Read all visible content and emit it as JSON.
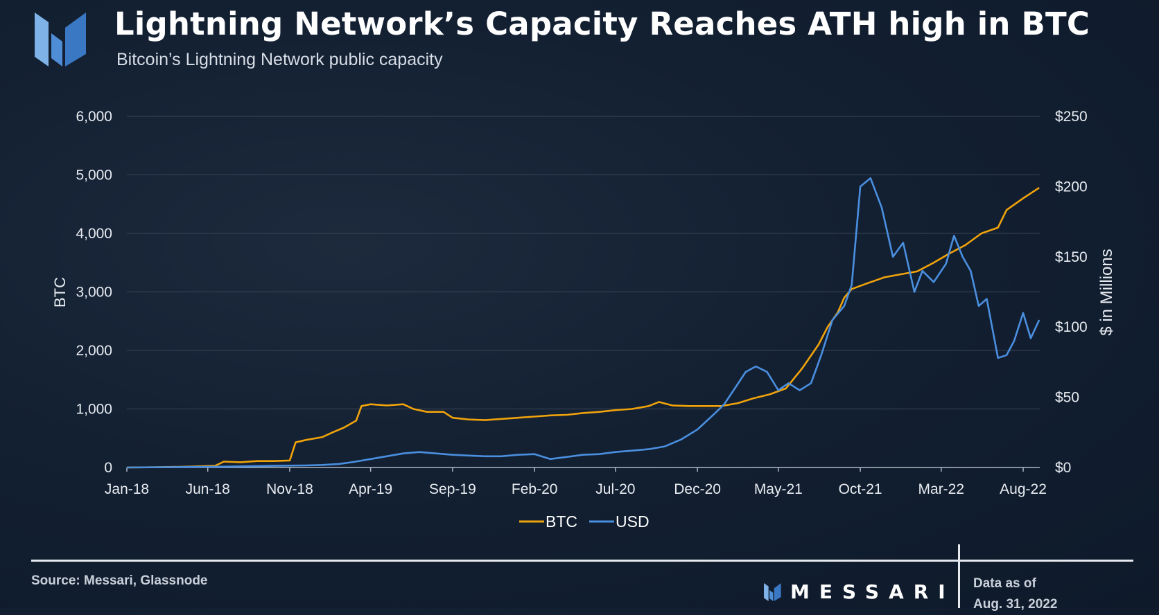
{
  "header": {
    "title": "Lightning Network’s Capacity Reaches ATH high in BTC",
    "subtitle": "Bitcoin’s Lightning Network public capacity"
  },
  "colors": {
    "btc": "#f0a30a",
    "usd": "#4a8fe0",
    "grid": "#3a4657",
    "logo_light": "#7fb2e6",
    "logo_dark": "#3b78c4"
  },
  "footer": {
    "source": "Source: Messari, Glassnode",
    "brand": "MESSARI",
    "data_as_of_label": "Data as of",
    "data_as_of_date": "Aug. 31, 2022"
  },
  "chart_data": {
    "type": "line",
    "title": "Lightning Network’s Capacity Reaches ATH high in BTC",
    "subtitle": "Bitcoin’s Lightning Network public capacity",
    "x_ticks": [
      "Jan-18",
      "Jun-18",
      "Nov-18",
      "Apr-19",
      "Sep-19",
      "Feb-20",
      "Jul-20",
      "Dec-20",
      "May-21",
      "Oct-21",
      "Mar-22",
      "Aug-22"
    ],
    "x_range": [
      "2018-01",
      "2022-09"
    ],
    "y_left": {
      "label": "BTC",
      "ticks": [
        "0",
        "1,000",
        "2,000",
        "3,000",
        "4,000",
        "5,000",
        "6,000"
      ],
      "ylim": [
        0,
        6000
      ]
    },
    "y_right": {
      "label": "$ in Millions",
      "ticks": [
        "$0",
        "$50",
        "$100",
        "$150",
        "$200",
        "$250"
      ],
      "ylim": [
        0,
        250
      ]
    },
    "grid": "horizontal",
    "legend": {
      "position": "bottom-center",
      "entries": [
        "BTC",
        "USD"
      ]
    },
    "series": [
      {
        "name": "BTC",
        "axis": "left",
        "points": [
          [
            "2018-01-01",
            0
          ],
          [
            "2018-03-01",
            5
          ],
          [
            "2018-05-01",
            15
          ],
          [
            "2018-06-15",
            30
          ],
          [
            "2018-07-01",
            100
          ],
          [
            "2018-08-01",
            90
          ],
          [
            "2018-09-01",
            110
          ],
          [
            "2018-10-01",
            110
          ],
          [
            "2018-11-01",
            120
          ],
          [
            "2018-11-12",
            430
          ],
          [
            "2018-12-01",
            470
          ],
          [
            "2019-01-01",
            520
          ],
          [
            "2019-01-20",
            600
          ],
          [
            "2019-02-10",
            680
          ],
          [
            "2019-03-05",
            800
          ],
          [
            "2019-03-15",
            1050
          ],
          [
            "2019-04-01",
            1080
          ],
          [
            "2019-05-01",
            1060
          ],
          [
            "2019-06-01",
            1080
          ],
          [
            "2019-06-20",
            1000
          ],
          [
            "2019-07-15",
            950
          ],
          [
            "2019-08-15",
            950
          ],
          [
            "2019-09-01",
            850
          ],
          [
            "2019-10-01",
            820
          ],
          [
            "2019-11-01",
            810
          ],
          [
            "2019-12-01",
            830
          ],
          [
            "2020-01-01",
            850
          ],
          [
            "2020-02-01",
            870
          ],
          [
            "2020-03-01",
            890
          ],
          [
            "2020-04-01",
            900
          ],
          [
            "2020-05-01",
            930
          ],
          [
            "2020-06-01",
            950
          ],
          [
            "2020-07-01",
            980
          ],
          [
            "2020-08-01",
            1000
          ],
          [
            "2020-09-01",
            1050
          ],
          [
            "2020-09-20",
            1120
          ],
          [
            "2020-10-15",
            1060
          ],
          [
            "2020-11-15",
            1050
          ],
          [
            "2020-12-15",
            1050
          ],
          [
            "2021-01-15",
            1050
          ],
          [
            "2021-02-15",
            1100
          ],
          [
            "2021-03-15",
            1180
          ],
          [
            "2021-04-15",
            1250
          ],
          [
            "2021-05-15",
            1350
          ],
          [
            "2021-06-15",
            1700
          ],
          [
            "2021-07-15",
            2100
          ],
          [
            "2021-08-01",
            2400
          ],
          [
            "2021-08-20",
            2650
          ],
          [
            "2021-09-01",
            2900
          ],
          [
            "2021-09-15",
            3050
          ],
          [
            "2021-10-15",
            3150
          ],
          [
            "2021-11-15",
            3250
          ],
          [
            "2021-12-15",
            3300
          ],
          [
            "2022-01-15",
            3350
          ],
          [
            "2022-02-15",
            3500
          ],
          [
            "2022-03-15",
            3650
          ],
          [
            "2022-04-15",
            3800
          ],
          [
            "2022-05-15",
            4000
          ],
          [
            "2022-06-15",
            4100
          ],
          [
            "2022-07-01",
            4400
          ],
          [
            "2022-08-01",
            4600
          ],
          [
            "2022-08-31",
            4780
          ]
        ]
      },
      {
        "name": "USD",
        "axis": "right",
        "points": [
          [
            "2018-01-01",
            0
          ],
          [
            "2018-04-01",
            0.3
          ],
          [
            "2018-07-01",
            0.6
          ],
          [
            "2018-10-01",
            1.2
          ],
          [
            "2018-12-01",
            1.5
          ],
          [
            "2019-01-01",
            1.8
          ],
          [
            "2019-02-01",
            2.5
          ],
          [
            "2019-03-01",
            4
          ],
          [
            "2019-04-01",
            6
          ],
          [
            "2019-05-01",
            8
          ],
          [
            "2019-06-01",
            10
          ],
          [
            "2019-07-01",
            11
          ],
          [
            "2019-08-01",
            10
          ],
          [
            "2019-09-01",
            9
          ],
          [
            "2019-10-01",
            8.5
          ],
          [
            "2019-11-01",
            8
          ],
          [
            "2019-12-01",
            8
          ],
          [
            "2020-01-01",
            9
          ],
          [
            "2020-02-01",
            9.5
          ],
          [
            "2020-03-01",
            6
          ],
          [
            "2020-04-01",
            7.5
          ],
          [
            "2020-05-01",
            9
          ],
          [
            "2020-06-01",
            9.5
          ],
          [
            "2020-07-01",
            11
          ],
          [
            "2020-08-01",
            12
          ],
          [
            "2020-09-01",
            13
          ],
          [
            "2020-10-01",
            15
          ],
          [
            "2020-11-01",
            20
          ],
          [
            "2020-12-01",
            27
          ],
          [
            "2021-01-01",
            38
          ],
          [
            "2021-01-20",
            45
          ],
          [
            "2021-02-10",
            57
          ],
          [
            "2021-03-01",
            68
          ],
          [
            "2021-03-20",
            72
          ],
          [
            "2021-04-10",
            68
          ],
          [
            "2021-05-01",
            55
          ],
          [
            "2021-05-20",
            60
          ],
          [
            "2021-06-10",
            55
          ],
          [
            "2021-07-01",
            60
          ],
          [
            "2021-07-20",
            80
          ],
          [
            "2021-08-10",
            105
          ],
          [
            "2021-09-01",
            115
          ],
          [
            "2021-09-15",
            130
          ],
          [
            "2021-10-01",
            200
          ],
          [
            "2021-10-20",
            206
          ],
          [
            "2021-11-10",
            185
          ],
          [
            "2021-12-01",
            150
          ],
          [
            "2021-12-20",
            160
          ],
          [
            "2022-01-10",
            125
          ],
          [
            "2022-01-25",
            140
          ],
          [
            "2022-02-15",
            132
          ],
          [
            "2022-03-10",
            145
          ],
          [
            "2022-03-25",
            165
          ],
          [
            "2022-04-10",
            150
          ],
          [
            "2022-04-25",
            140
          ],
          [
            "2022-05-10",
            115
          ],
          [
            "2022-05-25",
            120
          ],
          [
            "2022-06-15",
            78
          ],
          [
            "2022-07-01",
            80
          ],
          [
            "2022-07-15",
            90
          ],
          [
            "2022-08-01",
            110
          ],
          [
            "2022-08-15",
            92
          ],
          [
            "2022-08-31",
            105
          ]
        ]
      }
    ]
  }
}
